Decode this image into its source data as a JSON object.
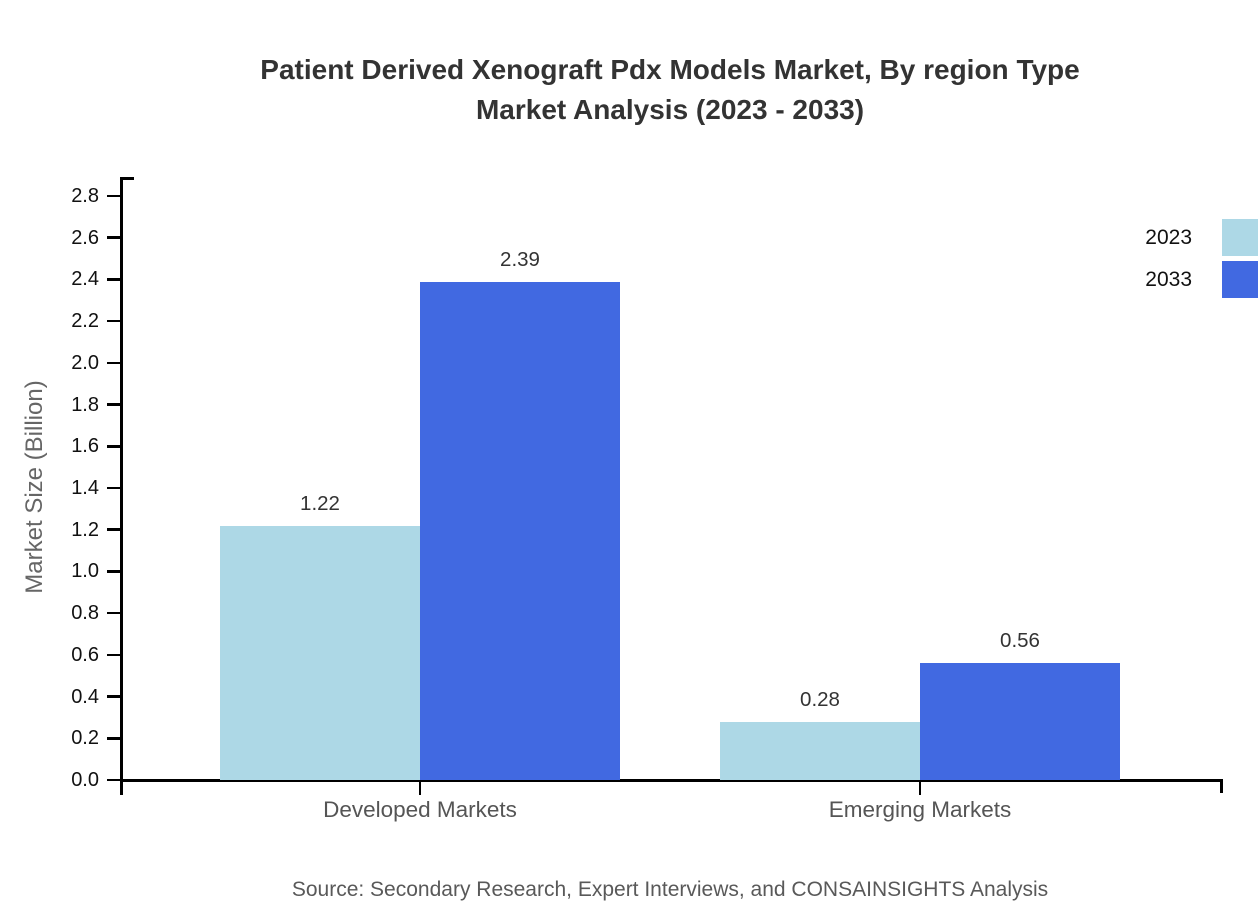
{
  "page": {
    "background": "#ffffff"
  },
  "chart_data": {
    "type": "bar",
    "title_line1": "Patient Derived Xenograft Pdx Models Market, By region Type",
    "title_line2": "Market Analysis (2023 - 2033)",
    "ylabel": "Market Size (Billion)",
    "xlabel": "",
    "categories": [
      "Developed Markets",
      "Emerging Markets"
    ],
    "series": [
      {
        "name": "2023",
        "color": "#ADD8E6",
        "values": [
          1.22,
          0.28
        ]
      },
      {
        "name": "2033",
        "color": "#4169E1",
        "values": [
          2.39,
          0.56
        ]
      }
    ],
    "ylim": [
      0,
      2.8
    ],
    "ytick_step": 0.2,
    "grid": false,
    "legend_position": "top-right",
    "value_labels": true
  },
  "colors": {
    "axis": "#000000",
    "title": "#333333",
    "tick_label": "#111111",
    "category_label": "#555555",
    "value_label": "#333333",
    "ylabel": "#666666",
    "source": "#595959"
  },
  "footer": {
    "source": "Source: Secondary Research, Expert Interviews, and CONSAINSIGHTS Analysis"
  }
}
